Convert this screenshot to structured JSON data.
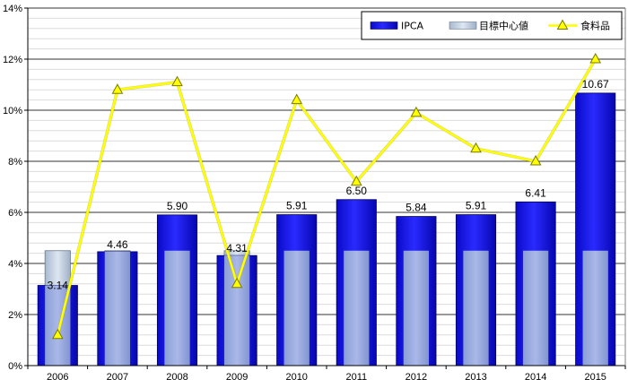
{
  "chart_data": {
    "type": "bar",
    "categories": [
      "2006",
      "2007",
      "2008",
      "2009",
      "2010",
      "2011",
      "2012",
      "2013",
      "2014",
      "2015"
    ],
    "series": [
      {
        "name": "IPCA",
        "kind": "bar",
        "values": [
          3.14,
          4.46,
          5.9,
          4.31,
          5.91,
          6.5,
          5.84,
          5.91,
          6.41,
          10.67
        ],
        "data_labels": [
          "3.14",
          "4.46",
          "5.90",
          "4.31",
          "5.91",
          "6.50",
          "5.84",
          "5.91",
          "6.41",
          "10.67"
        ],
        "color": "#1a1ae6"
      },
      {
        "name": "目標中心値",
        "kind": "bar",
        "values": [
          4.5,
          4.5,
          4.5,
          4.5,
          4.5,
          4.5,
          4.5,
          4.5,
          4.5,
          4.5
        ],
        "color": "#b8c8e0"
      },
      {
        "name": "食料品",
        "kind": "line",
        "values": [
          1.2,
          10.8,
          11.1,
          3.2,
          10.4,
          7.2,
          9.9,
          8.5,
          8.0,
          12.0
        ],
        "color": "#ffff00"
      }
    ],
    "ylim": [
      0,
      14
    ],
    "yticks": [
      0,
      2,
      4,
      6,
      8,
      10,
      12,
      14
    ],
    "ytick_labels": [
      "0%",
      "2%",
      "4%",
      "6%",
      "8%",
      "10%",
      "12%",
      "14%"
    ],
    "grid": true,
    "legend": "top-right"
  }
}
